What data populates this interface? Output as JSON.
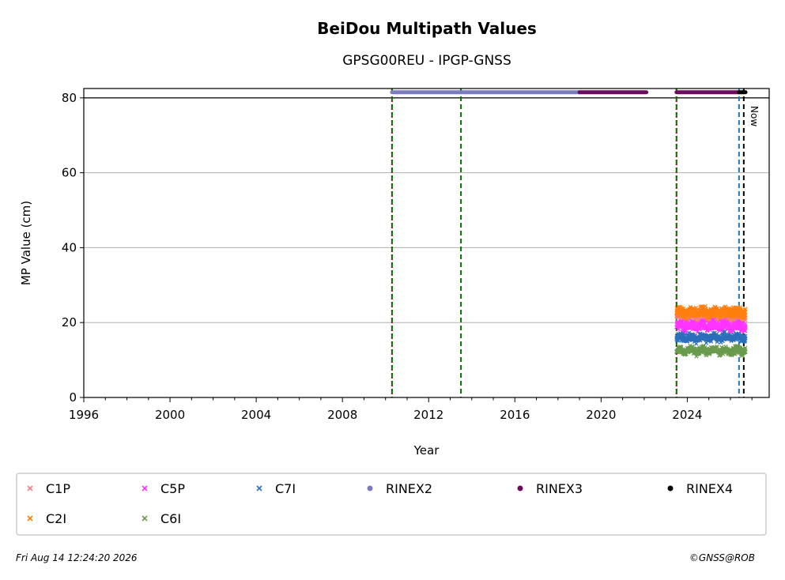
{
  "chart_data": {
    "type": "scatter",
    "title": "BeiDou Multipath Values",
    "subtitle": "GPSG00REU - IPGP-GNSS",
    "xlabel": "Year",
    "ylabel": "MP Value (cm)",
    "xlim": [
      1996,
      2027.8
    ],
    "ylim": [
      0,
      82.5
    ],
    "x_ticks": [
      1996,
      2000,
      2004,
      2008,
      2012,
      2016,
      2020,
      2024
    ],
    "y_ticks": [
      0,
      20,
      40,
      60,
      80
    ],
    "grid": "horizontal",
    "reference_line_y": 80,
    "series": [
      {
        "name": "C1P",
        "color": "#f08080",
        "marker": "x",
        "x_range": [
          2023.5,
          2026.7
        ],
        "mean": 21.5,
        "spread": 1.2
      },
      {
        "name": "C2I",
        "color": "#ff7f0e",
        "marker": "x",
        "x_range": [
          2023.5,
          2026.7
        ],
        "mean": 22.8,
        "spread": 1.3
      },
      {
        "name": "C5P",
        "color": "#ff33ff",
        "marker": "x",
        "x_range": [
          2023.5,
          2026.7
        ],
        "mean": 19.0,
        "spread": 1.2
      },
      {
        "name": "C6I",
        "color": "#6a9a4e",
        "marker": "x",
        "x_range": [
          2023.5,
          2026.7
        ],
        "mean": 12.5,
        "spread": 0.9
      },
      {
        "name": "C7I",
        "color": "#2c6fbb",
        "marker": "x",
        "x_range": [
          2023.5,
          2026.7
        ],
        "mean": 16.0,
        "spread": 1.0
      }
    ],
    "rinex_bands": [
      {
        "name": "RINEX2",
        "color": "#7b7bbf",
        "y": 81.5,
        "ranges": [
          [
            2010.3,
            2019.0
          ]
        ]
      },
      {
        "name": "RINEX3",
        "color": "#6b0a5e",
        "y": 81.5,
        "ranges": [
          [
            2019.0,
            2022.1
          ],
          [
            2023.5,
            2026.4
          ]
        ]
      },
      {
        "name": "RINEX4",
        "color": "#000000",
        "y": 81.5,
        "ranges": [
          [
            2026.4,
            2026.7
          ]
        ]
      }
    ],
    "event_lines": [
      {
        "x": 2010.3,
        "color": "#cc0000",
        "style": "dotted"
      },
      {
        "x": 2010.3,
        "color": "#007000",
        "style": "dashed"
      },
      {
        "x": 2013.5,
        "color": "#007000",
        "style": "dashed"
      },
      {
        "x": 2023.5,
        "color": "#cc0000",
        "style": "dotted"
      },
      {
        "x": 2023.5,
        "color": "#007000",
        "style": "dashed"
      },
      {
        "x": 2026.4,
        "color": "#1f77b4",
        "style": "dashed"
      }
    ],
    "now": {
      "x": 2026.62,
      "label": "Now"
    },
    "legend": {
      "placement": "bottom",
      "entries": [
        {
          "name": "C1P",
          "color": "#f08080",
          "marker": "x"
        },
        {
          "name": "C5P",
          "color": "#ff33ff",
          "marker": "x"
        },
        {
          "name": "C7I",
          "color": "#2c6fbb",
          "marker": "x"
        },
        {
          "name": "RINEX2",
          "color": "#7b7bbf",
          "marker": "dot"
        },
        {
          "name": "RINEX3",
          "color": "#6b0a5e",
          "marker": "dot"
        },
        {
          "name": "RINEX4",
          "color": "#000000",
          "marker": "dot"
        },
        {
          "name": "C2I",
          "color": "#ff7f0e",
          "marker": "x"
        },
        {
          "name": "C6I",
          "color": "#6a9a4e",
          "marker": "x"
        }
      ]
    }
  },
  "footer": {
    "timestamp": "Fri Aug 14 12:24:20 2026",
    "copyright": "©GNSS@ROB"
  }
}
